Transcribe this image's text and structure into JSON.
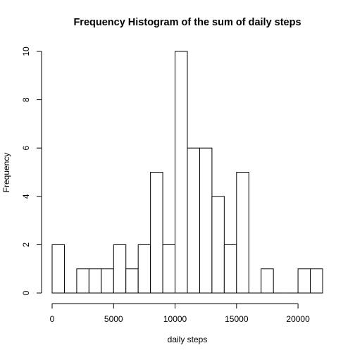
{
  "chart_data": {
    "type": "bar",
    "title": "Frequency Histogram of the sum of daily steps",
    "xlabel": "daily steps",
    "ylabel": "Frequency",
    "bin_width": 1000,
    "bins": [
      {
        "x0": 0,
        "x1": 1000,
        "count": 2
      },
      {
        "x0": 1000,
        "x1": 2000,
        "count": 0
      },
      {
        "x0": 2000,
        "x1": 3000,
        "count": 1
      },
      {
        "x0": 3000,
        "x1": 4000,
        "count": 1
      },
      {
        "x0": 4000,
        "x1": 5000,
        "count": 1
      },
      {
        "x0": 5000,
        "x1": 6000,
        "count": 2
      },
      {
        "x0": 6000,
        "x1": 7000,
        "count": 1
      },
      {
        "x0": 7000,
        "x1": 8000,
        "count": 2
      },
      {
        "x0": 8000,
        "x1": 9000,
        "count": 5
      },
      {
        "x0": 9000,
        "x1": 10000,
        "count": 2
      },
      {
        "x0": 10000,
        "x1": 11000,
        "count": 10
      },
      {
        "x0": 11000,
        "x1": 12000,
        "count": 6
      },
      {
        "x0": 12000,
        "x1": 13000,
        "count": 6
      },
      {
        "x0": 13000,
        "x1": 14000,
        "count": 4
      },
      {
        "x0": 14000,
        "x1": 15000,
        "count": 2
      },
      {
        "x0": 15000,
        "x1": 16000,
        "count": 5
      },
      {
        "x0": 16000,
        "x1": 17000,
        "count": 0
      },
      {
        "x0": 17000,
        "x1": 18000,
        "count": 1
      },
      {
        "x0": 18000,
        "x1": 19000,
        "count": 0
      },
      {
        "x0": 19000,
        "x1": 20000,
        "count": 0
      },
      {
        "x0": 20000,
        "x1": 21000,
        "count": 1
      },
      {
        "x0": 21000,
        "x1": 22000,
        "count": 1
      }
    ],
    "xlim": [
      0,
      22000
    ],
    "ylim": [
      0,
      10
    ],
    "x_ticks": [
      0,
      5000,
      10000,
      15000,
      20000
    ],
    "x_tick_labels": [
      "0",
      "5000",
      "10000",
      "15000",
      "20000"
    ],
    "y_ticks": [
      0,
      2,
      4,
      6,
      8,
      10
    ],
    "y_tick_labels": [
      "0",
      "2",
      "4",
      "6",
      "8",
      "10"
    ],
    "grid": false,
    "legend": "none",
    "bar_fill": "#ffffff",
    "bar_stroke": "#000000"
  }
}
